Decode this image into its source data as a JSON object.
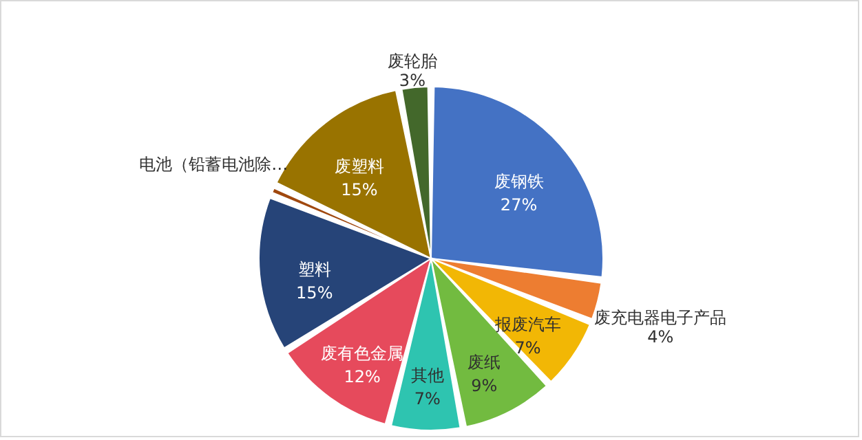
{
  "chart_data": {
    "type": "pie",
    "categories": [
      "废钢铁",
      "废充电器电子产品",
      "报废汽车",
      "废纸",
      "其他",
      "废有色金属",
      "塑料",
      "电池（铅蓄电池除…",
      "废塑料",
      "废轮胎"
    ],
    "values": [
      27,
      4,
      7,
      9,
      7,
      12,
      15,
      1,
      15,
      3
    ],
    "value_labels": [
      "27%",
      "4%",
      "7%",
      "9%",
      "7%",
      "12%",
      "15%",
      null,
      "15%",
      "3%"
    ],
    "colors": [
      "#4472c4",
      "#ed7d31",
      "#f2b705",
      "#72bb40",
      "#2ec4b0",
      "#e64a5c",
      "#264478",
      "#a0480e",
      "#997300",
      "#43682b"
    ]
  }
}
